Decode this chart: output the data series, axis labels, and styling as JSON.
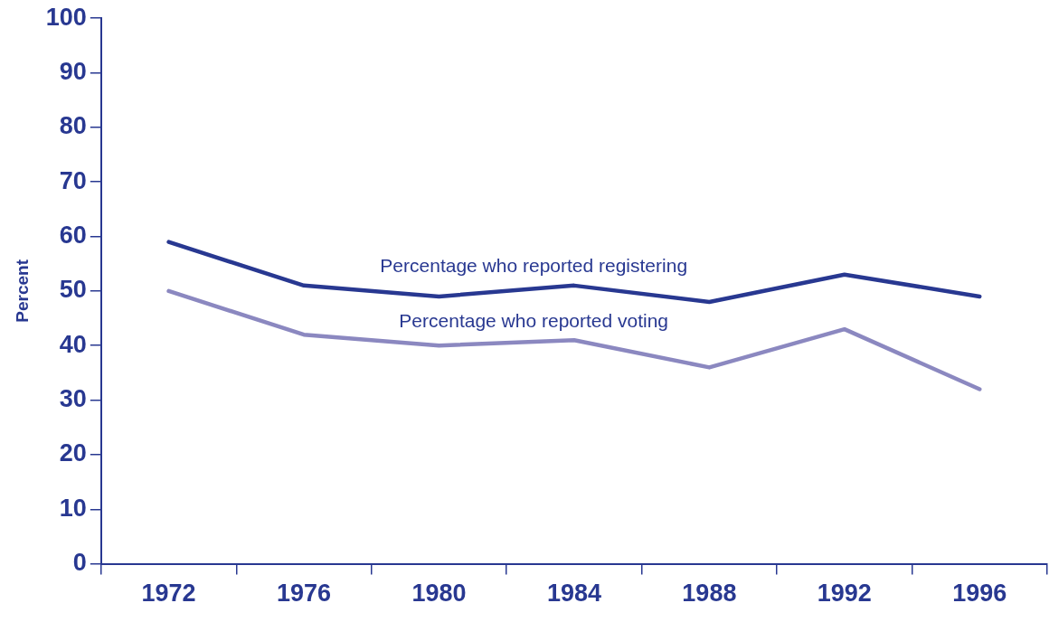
{
  "chart_data": {
    "type": "line",
    "ylabel": "Percent",
    "categories": [
      "1972",
      "1976",
      "1980",
      "1984",
      "1988",
      "1992",
      "1996"
    ],
    "series": [
      {
        "name": "Percentage who reported registering",
        "color": "#283891",
        "values": [
          59,
          51,
          49,
          51,
          48,
          53,
          49
        ]
      },
      {
        "name": "Percentage who reported voting",
        "color": "#8b88c0",
        "values": [
          50,
          42,
          40,
          41,
          36,
          43,
          32
        ]
      }
    ],
    "ylim": [
      0,
      100
    ],
    "yticks": [
      0,
      10,
      20,
      30,
      40,
      50,
      60,
      70,
      80,
      90,
      100
    ],
    "grid": false,
    "legend": false,
    "marker": "none",
    "line_style": "solid"
  }
}
